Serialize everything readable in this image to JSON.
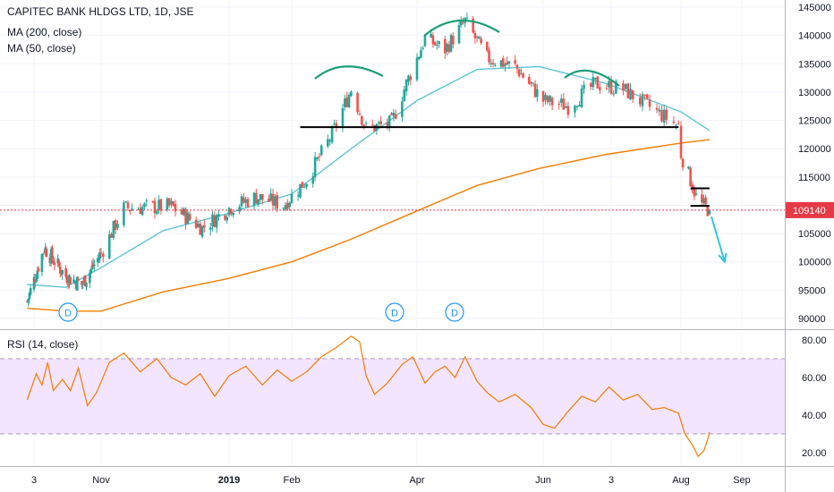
{
  "header": {
    "title": "CAPITEC BANK HLDGS LTD, 1D, JSE",
    "indicators": [
      "MA (200, close)",
      "MA (50, close)"
    ],
    "rsi_label": "RSI (14, close)"
  },
  "price_tag": {
    "value": "109140",
    "color": "#e63946"
  },
  "colors": {
    "up": "#26a69a",
    "down": "#ef5350",
    "ma200": "#f57c00",
    "ma50": "#5ec4d4",
    "rsi": "#f57c00",
    "rsi_band": "#f3e5ff",
    "pattern_arc": "#1b9e77",
    "level": "#000000",
    "arrow": "#36c5d9",
    "price_line": "#e63946"
  },
  "dividend_markers": [
    "D",
    "D",
    "D"
  ],
  "chart_data": [
    {
      "type": "candlestick",
      "title": "CAPITEC BANK HLDGS LTD, 1D, JSE",
      "x_tick_labels": [
        "3",
        "Nov",
        "2019",
        "Feb",
        "Apr",
        "Jun",
        "3",
        "Aug",
        "Sep"
      ],
      "y_ticks": [
        90000,
        95000,
        100000,
        105000,
        110000,
        115000,
        120000,
        125000,
        130000,
        135000,
        140000,
        145000
      ],
      "ylim": [
        89000,
        146500
      ],
      "dates": [
        "2018-09-03",
        "2018-11-01",
        "2019-01-02",
        "2019-02-01",
        "2019-04-01",
        "2019-06-03",
        "2019-07-03",
        "2019-08-01",
        "2019-09-02"
      ],
      "last_price": 109140,
      "ma_series": [
        {
          "name": "MA (200, close)",
          "points": [
            [
              "2018-08-28",
              91800
            ],
            [
              "2018-10-01",
              91300
            ],
            [
              "2018-11-01",
              91300
            ],
            [
              "2018-12-01",
              94700
            ],
            [
              "2019-01-01",
              97000
            ],
            [
              "2019-02-01",
              100000
            ],
            [
              "2019-03-01",
              104000
            ],
            [
              "2019-04-01",
              109000
            ],
            [
              "2019-05-01",
              113500
            ],
            [
              "2019-06-01",
              116500
            ],
            [
              "2019-07-01",
              119000
            ],
            [
              "2019-08-01",
              121000
            ],
            [
              "2019-08-16",
              121600
            ]
          ]
        },
        {
          "name": "MA (50, close)",
          "points": [
            [
              "2018-08-28",
              96000
            ],
            [
              "2018-10-01",
              95500
            ],
            [
              "2018-11-01",
              99000
            ],
            [
              "2018-12-01",
              105500
            ],
            [
              "2019-01-01",
              108500
            ],
            [
              "2019-02-01",
              112000
            ],
            [
              "2019-03-01",
              120000
            ],
            [
              "2019-04-01",
              128500
            ],
            [
              "2019-05-01",
              134000
            ],
            [
              "2019-06-01",
              134500
            ],
            [
              "2019-07-01",
              131500
            ],
            [
              "2019-08-01",
              126500
            ],
            [
              "2019-08-16",
              123200
            ]
          ]
        }
      ],
      "price_path": [
        [
          "2018-08-28",
          93000
        ],
        [
          "2018-09-12",
          102500
        ],
        [
          "2018-10-01",
          97500
        ],
        [
          "2018-10-15",
          96000
        ],
        [
          "2018-11-01",
          101500
        ],
        [
          "2018-11-12",
          109500
        ],
        [
          "2018-12-05",
          109800
        ],
        [
          "2018-12-20",
          106000
        ],
        [
          "2019-01-02",
          109500
        ],
        [
          "2019-01-15",
          111500
        ],
        [
          "2019-01-28",
          110000
        ],
        [
          "2019-02-08",
          114500
        ],
        [
          "2019-02-20",
          122500
        ],
        [
          "2019-03-01",
          130500
        ],
        [
          "2019-03-08",
          123500
        ],
        [
          "2019-03-20",
          124500
        ],
        [
          "2019-03-27",
          131500
        ],
        [
          "2019-04-05",
          139500
        ],
        [
          "2019-04-15",
          137500
        ],
        [
          "2019-04-25",
          142500
        ],
        [
          "2019-05-06",
          136000
        ],
        [
          "2019-05-20",
          134500
        ],
        [
          "2019-06-03",
          128500
        ],
        [
          "2019-06-14",
          127500
        ],
        [
          "2019-06-26",
          131500
        ],
        [
          "2019-07-08",
          130500
        ],
        [
          "2019-07-22",
          126500
        ],
        [
          "2019-07-31",
          124000
        ],
        [
          "2019-08-01",
          119000
        ],
        [
          "2019-08-06",
          114500
        ],
        [
          "2019-08-10",
          110500
        ],
        [
          "2019-08-16",
          109140
        ]
      ],
      "pattern_lines": [
        {
          "label": "neckline",
          "from": [
            "2019-02-05",
            123800
          ],
          "to": [
            "2019-07-31",
            123800
          ]
        },
        {
          "label": "box-top",
          "from": [
            "2019-08-06",
            113000
          ],
          "to": [
            "2019-08-16",
            113000
          ]
        },
        {
          "label": "box-bottom",
          "from": [
            "2019-08-06",
            109900
          ],
          "to": [
            "2019-08-16",
            109900
          ]
        }
      ],
      "projection_arrow": {
        "from": [
          "2019-08-17",
          108000
        ],
        "to": [
          "2019-08-24",
          100000
        ]
      }
    },
    {
      "type": "line",
      "title": "RSI (14, close)",
      "y_ticks": [
        20,
        40,
        60,
        80
      ],
      "ylim": [
        13,
        84
      ],
      "bands": [
        30,
        70
      ],
      "points": [
        [
          "2018-08-28",
          48
        ],
        [
          "2018-09-05",
          62
        ],
        [
          "2018-09-10",
          56
        ],
        [
          "2018-09-15",
          68
        ],
        [
          "2018-09-20",
          53
        ],
        [
          "2018-09-28",
          59
        ],
        [
          "2018-10-05",
          53
        ],
        [
          "2018-10-12",
          65
        ],
        [
          "2018-10-20",
          45
        ],
        [
          "2018-10-28",
          52
        ],
        [
          "2018-11-05",
          68
        ],
        [
          "2018-11-12",
          73
        ],
        [
          "2018-11-20",
          63
        ],
        [
          "2018-11-28",
          70
        ],
        [
          "2018-12-05",
          60
        ],
        [
          "2018-12-12",
          56
        ],
        [
          "2018-12-19",
          62
        ],
        [
          "2018-12-26",
          50
        ],
        [
          "2019-01-02",
          61
        ],
        [
          "2019-01-10",
          66
        ],
        [
          "2019-01-18",
          56
        ],
        [
          "2019-01-25",
          64
        ],
        [
          "2019-02-01",
          58
        ],
        [
          "2019-02-08",
          63
        ],
        [
          "2019-02-15",
          71
        ],
        [
          "2019-02-22",
          76
        ],
        [
          "2019-03-01",
          82
        ],
        [
          "2019-03-05",
          79
        ],
        [
          "2019-03-08",
          61
        ],
        [
          "2019-03-12",
          51
        ],
        [
          "2019-03-18",
          57
        ],
        [
          "2019-03-25",
          67
        ],
        [
          "2019-03-30",
          71
        ],
        [
          "2019-04-05",
          57
        ],
        [
          "2019-04-10",
          63
        ],
        [
          "2019-04-15",
          66
        ],
        [
          "2019-04-20",
          60
        ],
        [
          "2019-04-25",
          71
        ],
        [
          "2019-05-01",
          58
        ],
        [
          "2019-05-06",
          52
        ],
        [
          "2019-05-12",
          47
        ],
        [
          "2019-05-20",
          51
        ],
        [
          "2019-05-28",
          44
        ],
        [
          "2019-06-03",
          35
        ],
        [
          "2019-06-08",
          33
        ],
        [
          "2019-06-14",
          42
        ],
        [
          "2019-06-20",
          50
        ],
        [
          "2019-06-26",
          47
        ],
        [
          "2019-07-02",
          55
        ],
        [
          "2019-07-08",
          48
        ],
        [
          "2019-07-14",
          51
        ],
        [
          "2019-07-20",
          43
        ],
        [
          "2019-07-25",
          44
        ],
        [
          "2019-07-31",
          41
        ],
        [
          "2019-08-03",
          30
        ],
        [
          "2019-08-07",
          24
        ],
        [
          "2019-08-10",
          18
        ],
        [
          "2019-08-13",
          21
        ],
        [
          "2019-08-15",
          27
        ],
        [
          "2019-08-16",
          31
        ]
      ]
    }
  ]
}
